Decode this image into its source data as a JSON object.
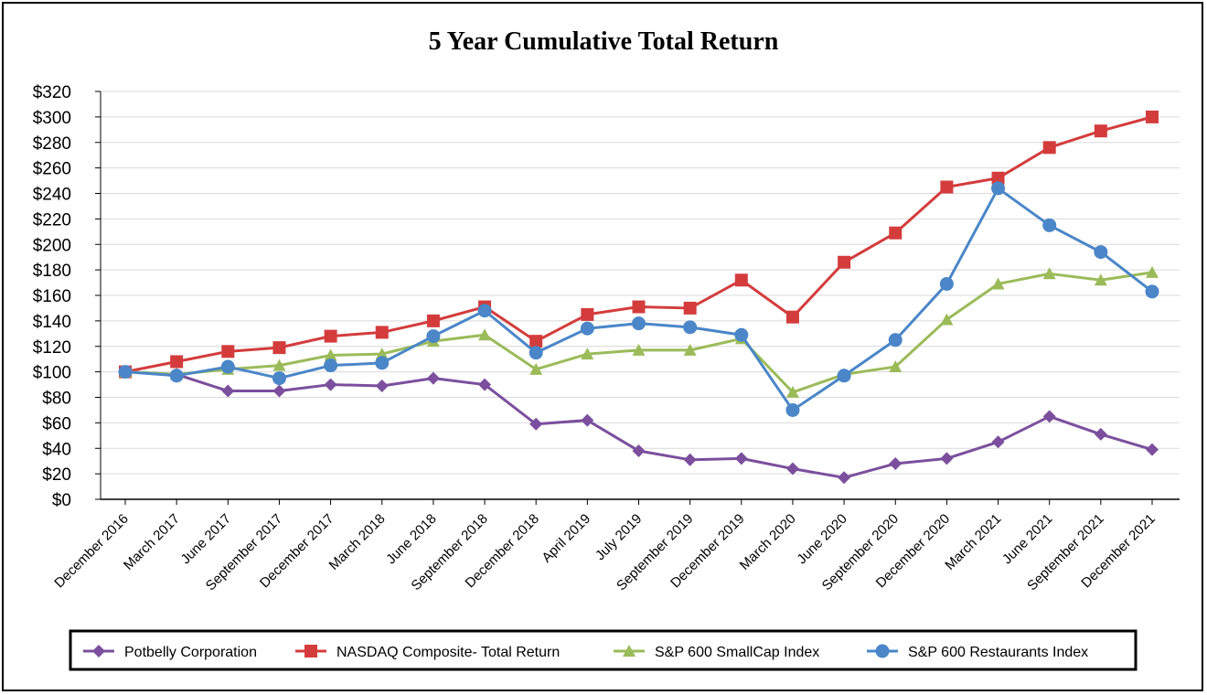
{
  "chart_data": {
    "type": "line",
    "title": "5 Year Cumulative Total Return",
    "xlabel": "",
    "ylabel": "",
    "ylim": [
      0,
      320
    ],
    "y_ticks": [
      "$0",
      "$20",
      "$40",
      "$60",
      "$80",
      "$100",
      "$120",
      "$140",
      "$160",
      "$180",
      "$200",
      "$220",
      "$240",
      "$260",
      "$280",
      "$300",
      "$320"
    ],
    "categories": [
      "December 2016",
      "March 2017",
      "June 2017",
      "September 2017",
      "December 2017",
      "March 2018",
      "June 2018",
      "September 2018",
      "December 2018",
      "April 2019",
      "July 2019",
      "September 2019",
      "December 2019",
      "March 2020",
      "June 2020",
      "September 2020",
      "December 2020",
      "March 2021",
      "June 2021",
      "September 2021",
      "December 2021"
    ],
    "grid": "horizontal",
    "legend_position": "bottom",
    "series": [
      {
        "name": "Potbelly Corporation",
        "color": "#7b4f9d",
        "marker": "diamond",
        "values": [
          100,
          98,
          85,
          85,
          90,
          89,
          95,
          90,
          59,
          62,
          38,
          31,
          32,
          24,
          17,
          28,
          32,
          45,
          65,
          51,
          39
        ]
      },
      {
        "name": "NASDAQ Composite- Total Return",
        "color": "#d43c3c",
        "marker": "square",
        "values": [
          100,
          108,
          116,
          119,
          128,
          131,
          140,
          151,
          124,
          145,
          151,
          150,
          172,
          143,
          186,
          209,
          245,
          252,
          276,
          289,
          300
        ]
      },
      {
        "name": "S&P 600 SmallCap Index",
        "color": "#9bbb59",
        "marker": "triangle",
        "values": [
          100,
          98,
          102,
          105,
          113,
          114,
          124,
          129,
          102,
          114,
          117,
          117,
          126,
          84,
          98,
          104,
          141,
          169,
          177,
          172,
          178
        ]
      },
      {
        "name": "S&P 600 Restaurants Index",
        "color": "#4a86c8",
        "marker": "circle",
        "values": [
          100,
          97,
          104,
          95,
          105,
          107,
          128,
          148,
          115,
          134,
          138,
          135,
          129,
          70,
          97,
          125,
          169,
          244,
          215,
          194,
          163
        ]
      }
    ]
  }
}
